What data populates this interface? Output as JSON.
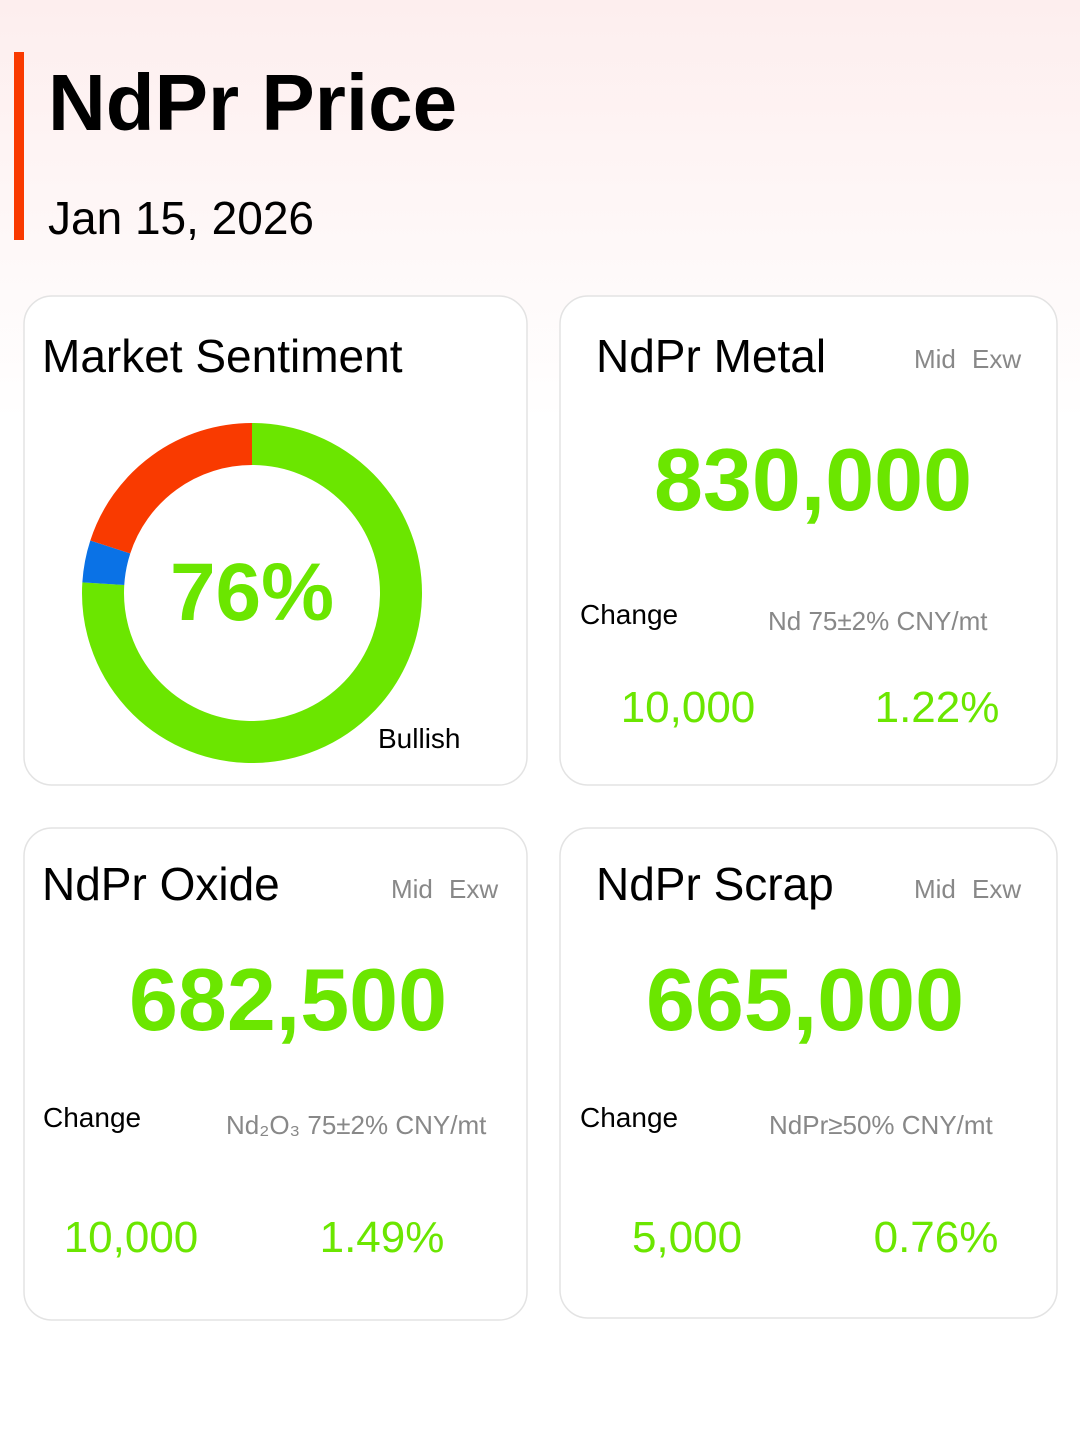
{
  "header": {
    "title": "NdPr Price",
    "date": "Jan 15, 2026"
  },
  "sentiment": {
    "title": "Market Sentiment",
    "type": "donut",
    "segments": [
      {
        "value": 76,
        "color": "#6be600",
        "label": "76%"
      },
      {
        "value": 4,
        "color": "#0a72e6"
      },
      {
        "value": 20,
        "color": "#f93a00"
      }
    ],
    "caption": "Bullish"
  },
  "cards": [
    {
      "title": "NdPr Metal",
      "tags": [
        "Mid",
        "Exw"
      ],
      "price": "830,000",
      "change_label": "Change",
      "spec": "Nd 75±2% CNY/mt",
      "change": "10,000",
      "change_pct": "1.22%"
    },
    {
      "title": "NdPr Oxide",
      "tags": [
        "Mid",
        "Exw"
      ],
      "price": "682,500",
      "change_label": "Change",
      "spec": "Nd₂O₃ 75±2% CNY/mt",
      "change": "10,000",
      "change_pct": "1.49%"
    },
    {
      "title": "NdPr Scrap",
      "tags": [
        "Mid",
        "Exw"
      ],
      "price": "665,000",
      "change_label": "Change",
      "spec": "NdPr≥50% CNY/mt",
      "change": "5,000",
      "change_pct": "0.76%"
    }
  ]
}
